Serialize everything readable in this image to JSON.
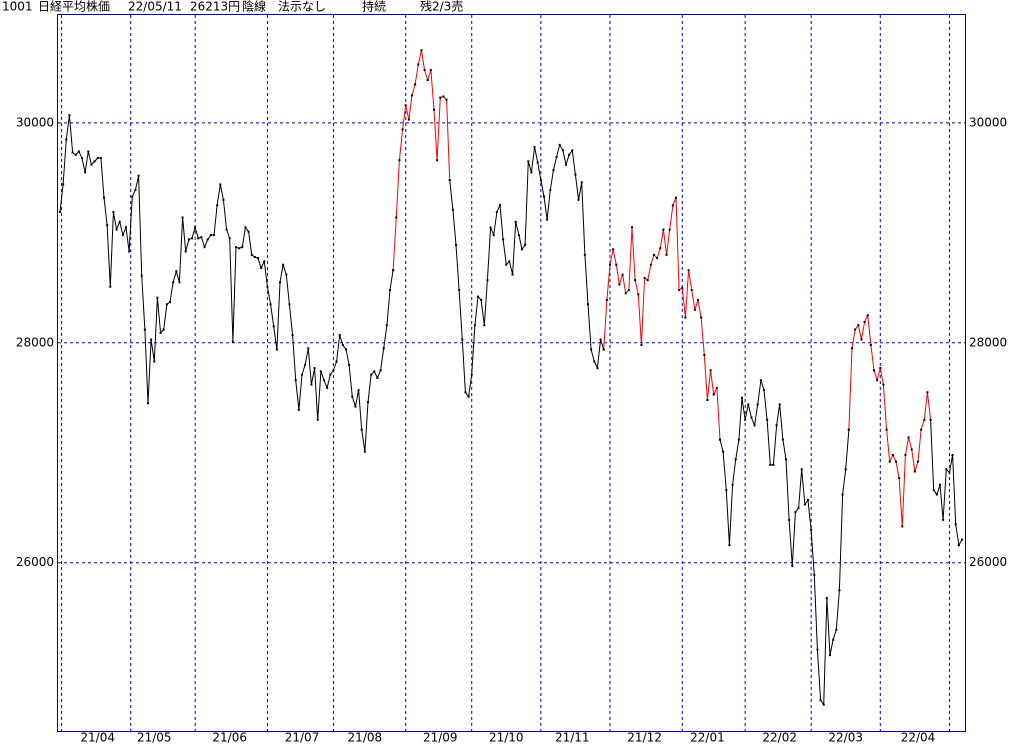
{
  "header": {
    "items": [
      "1001",
      "日経平均株価",
      "22/05/11",
      "26213円",
      "陰線",
      "法示なし",
      "持続",
      "残2/3売"
    ]
  },
  "chart_data": {
    "type": "line",
    "ylim": [
      24470,
      30990
    ],
    "yticks": [
      26000,
      28000,
      30000
    ],
    "grid": true,
    "xticks": [
      {
        "value": 12,
        "label": "21/04"
      },
      {
        "value": 30,
        "label": "21/05"
      },
      {
        "value": 54,
        "label": "21/06"
      },
      {
        "value": 77,
        "label": "21/07"
      },
      {
        "value": 97,
        "label": "21/08"
      },
      {
        "value": 121,
        "label": "21/09"
      },
      {
        "value": 142,
        "label": "21/10"
      },
      {
        "value": 163,
        "label": "21/11"
      },
      {
        "value": 186,
        "label": "21/12"
      },
      {
        "value": 206,
        "label": "22/01"
      },
      {
        "value": 229,
        "label": "22/02"
      },
      {
        "value": 250,
        "label": "22/03"
      },
      {
        "value": 273,
        "label": "22/04"
      }
    ],
    "xgrid": [
      0.5,
      22.5,
      43,
      66,
      87,
      110,
      131,
      153,
      175,
      198,
      218,
      239,
      261,
      283
    ],
    "series": [
      {
        "color": "#000000",
        "values": [
          29190,
          29440,
          29850,
          30070,
          29730,
          29710,
          29740,
          29680,
          29550,
          29740,
          29620,
          29650,
          29680,
          29680,
          29320,
          29070,
          28510,
          29190,
          29030,
          29100,
          28980,
          29050,
          28830,
          29330,
          29390,
          29520,
          28610,
          28120,
          27450,
          28030,
          27830,
          28410,
          28090,
          28120,
          28350,
          28370,
          28550,
          28650,
          28550,
          29140,
          28830,
          28940,
          28950,
          29050,
          28950,
          28960,
          28870,
          28940,
          28980,
          28980,
          29250,
          29440,
          29300,
          29030,
          28950,
          28010,
          28870,
          28860,
          28870,
          29050,
          29010,
          28800,
          28780,
          28770,
          28680,
          28740,
          28510,
          28350,
          28150,
          27940,
          28550,
          28710,
          28620,
          28350,
          28070,
          27660,
          27390,
          27710,
          27800,
          27950,
          27620,
          27770,
          27300,
          27740,
          27660,
          27590,
          27710,
          27750,
          27830,
          28070,
          27980,
          27940,
          27800,
          27510,
          27420,
          27570,
          27210,
          27010,
          27460,
          27710,
          27740,
          27680,
          27750,
          27950,
          28160,
          28480,
          28660,
          null,
          null,
          null,
          null,
          null,
          null,
          null,
          null,
          null,
          null,
          null,
          null,
          null,
          null,
          null,
          null,
          null,
          29480,
          29210,
          28890,
          28480,
          28030,
          27550,
          27510,
          27710,
          28160,
          28420,
          28390,
          28160,
          28570,
          29050,
          28980,
          29190,
          29250,
          28940,
          28710,
          28740,
          28620,
          29100,
          28980,
          28850,
          28890,
          29650,
          29550,
          29780,
          29640,
          29480,
          29330,
          29120,
          29390,
          29570,
          29690,
          29800,
          29750,
          29620,
          29710,
          29750,
          29530,
          29300,
          29460,
          28800,
          28350,
          27940,
          27830,
          27770,
          28030,
          27940,
          null,
          null,
          null,
          null,
          null,
          null,
          null,
          null,
          null,
          null,
          null,
          null,
          null,
          null,
          null,
          null,
          null,
          null,
          null,
          null,
          null,
          null,
          null,
          null,
          null,
          null,
          null,
          null,
          null,
          null,
          null,
          null,
          null,
          null,
          null,
          null,
          27120,
          27010,
          26660,
          26160,
          26710,
          26940,
          27120,
          27500,
          27300,
          27440,
          27320,
          27250,
          27440,
          27660,
          27570,
          27300,
          26890,
          26890,
          27250,
          27440,
          27120,
          26940,
          26390,
          25970,
          26460,
          26500,
          26850,
          26530,
          26570,
          26300,
          25890,
          25210,
          24750,
          24710,
          25680,
          25160,
          25300,
          25390,
          25750,
          26620,
          26850,
          27210,
          null,
          null,
          null,
          null,
          null,
          null,
          null,
          null,
          null,
          null,
          null,
          null,
          null,
          null,
          null,
          null,
          null,
          null,
          null,
          null,
          null,
          null,
          null,
          null,
          null,
          27300,
          26660,
          26620,
          26710,
          26390,
          26850,
          26820,
          26980,
          26350,
          26160,
          26210
        ]
      },
      {
        "color": "#ff0000",
        "values": [
          null,
          null,
          null,
          null,
          null,
          null,
          null,
          null,
          null,
          null,
          null,
          null,
          null,
          null,
          null,
          null,
          null,
          null,
          null,
          null,
          null,
          null,
          null,
          null,
          null,
          null,
          null,
          null,
          null,
          null,
          null,
          null,
          null,
          null,
          null,
          null,
          null,
          null,
          null,
          null,
          null,
          null,
          null,
          null,
          null,
          null,
          null,
          null,
          null,
          null,
          null,
          null,
          null,
          null,
          null,
          null,
          null,
          null,
          null,
          null,
          null,
          null,
          null,
          null,
          null,
          null,
          null,
          null,
          null,
          null,
          null,
          null,
          null,
          null,
          null,
          null,
          null,
          null,
          null,
          null,
          null,
          null,
          null,
          null,
          null,
          null,
          null,
          null,
          null,
          null,
          null,
          null,
          null,
          null,
          null,
          null,
          null,
          null,
          null,
          null,
          null,
          null,
          null,
          null,
          null,
          null,
          28660,
          29140,
          29660,
          29940,
          30160,
          30030,
          30250,
          30350,
          30530,
          30660,
          30480,
          30390,
          30480,
          30120,
          29660,
          30230,
          30240,
          30210,
          29480,
          null,
          null,
          null,
          null,
          null,
          null,
          null,
          null,
          null,
          null,
          null,
          null,
          null,
          null,
          null,
          null,
          null,
          null,
          null,
          null,
          null,
          null,
          null,
          null,
          null,
          null,
          null,
          null,
          null,
          null,
          null,
          null,
          null,
          null,
          null,
          null,
          null,
          null,
          null,
          null,
          null,
          null,
          null,
          null,
          null,
          null,
          null,
          null,
          27940,
          28390,
          28710,
          28850,
          28710,
          28530,
          28620,
          28450,
          28480,
          29050,
          28570,
          28440,
          27980,
          28590,
          28570,
          28710,
          28800,
          28770,
          28860,
          29030,
          28800,
          29030,
          29250,
          29320,
          28480,
          28500,
          28230,
          28660,
          28480,
          28300,
          28390,
          28230,
          27890,
          27480,
          27750,
          27530,
          27590,
          27120,
          null,
          null,
          null,
          null,
          null,
          null,
          null,
          null,
          null,
          null,
          null,
          null,
          null,
          null,
          null,
          null,
          null,
          null,
          null,
          null,
          null,
          null,
          null,
          null,
          null,
          null,
          null,
          null,
          null,
          null,
          null,
          null,
          null,
          null,
          null,
          null,
          null,
          null,
          null,
          null,
          27210,
          27950,
          28120,
          28160,
          28030,
          28190,
          28250,
          27980,
          27750,
          27660,
          27770,
          27620,
          27210,
          26920,
          26980,
          26920,
          26770,
          26330,
          26980,
          27140,
          27030,
          26830,
          26920,
          27210,
          27300,
          27550,
          27300,
          null,
          null,
          null,
          null,
          null,
          null,
          null,
          null,
          null,
          null
        ]
      }
    ]
  }
}
